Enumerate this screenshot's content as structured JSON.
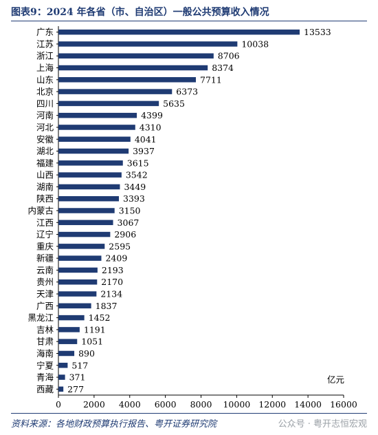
{
  "title": "图表9：2024 年各省（市、自治区）一般公共预算收入情况",
  "source": "资料来源：各地财政预算执行报告、粤开证券研究院",
  "watermark": "公众号 · 粤开志恒宏观",
  "colors": {
    "bar": "#1f3b73",
    "accent": "#1f3b73"
  },
  "chart_data": {
    "type": "bar",
    "orientation": "horizontal",
    "unit_label": "亿元",
    "categories": [
      "广东",
      "江苏",
      "浙江",
      "上海",
      "山东",
      "北京",
      "四川",
      "河南",
      "河北",
      "安徽",
      "湖北",
      "福建",
      "山西",
      "湖南",
      "陕西",
      "内蒙古",
      "江西",
      "辽宁",
      "重庆",
      "新疆",
      "云南",
      "贵州",
      "天津",
      "广西",
      "黑龙江",
      "吉林",
      "甘肃",
      "海南",
      "宁夏",
      "青海",
      "西藏"
    ],
    "values": [
      13533,
      10038,
      8706,
      8374,
      7711,
      6373,
      5635,
      4399,
      4310,
      4041,
      3937,
      3615,
      3542,
      3449,
      3393,
      3150,
      3067,
      2906,
      2595,
      2409,
      2193,
      2170,
      2134,
      1837,
      1452,
      1191,
      1051,
      890,
      517,
      371,
      277
    ],
    "xlim": [
      0,
      16000
    ],
    "xticks": [
      "0",
      "2000",
      "4000",
      "6000",
      "8000",
      "10000",
      "12000",
      "14000",
      "16000"
    ],
    "grid": false,
    "legend": "none"
  }
}
